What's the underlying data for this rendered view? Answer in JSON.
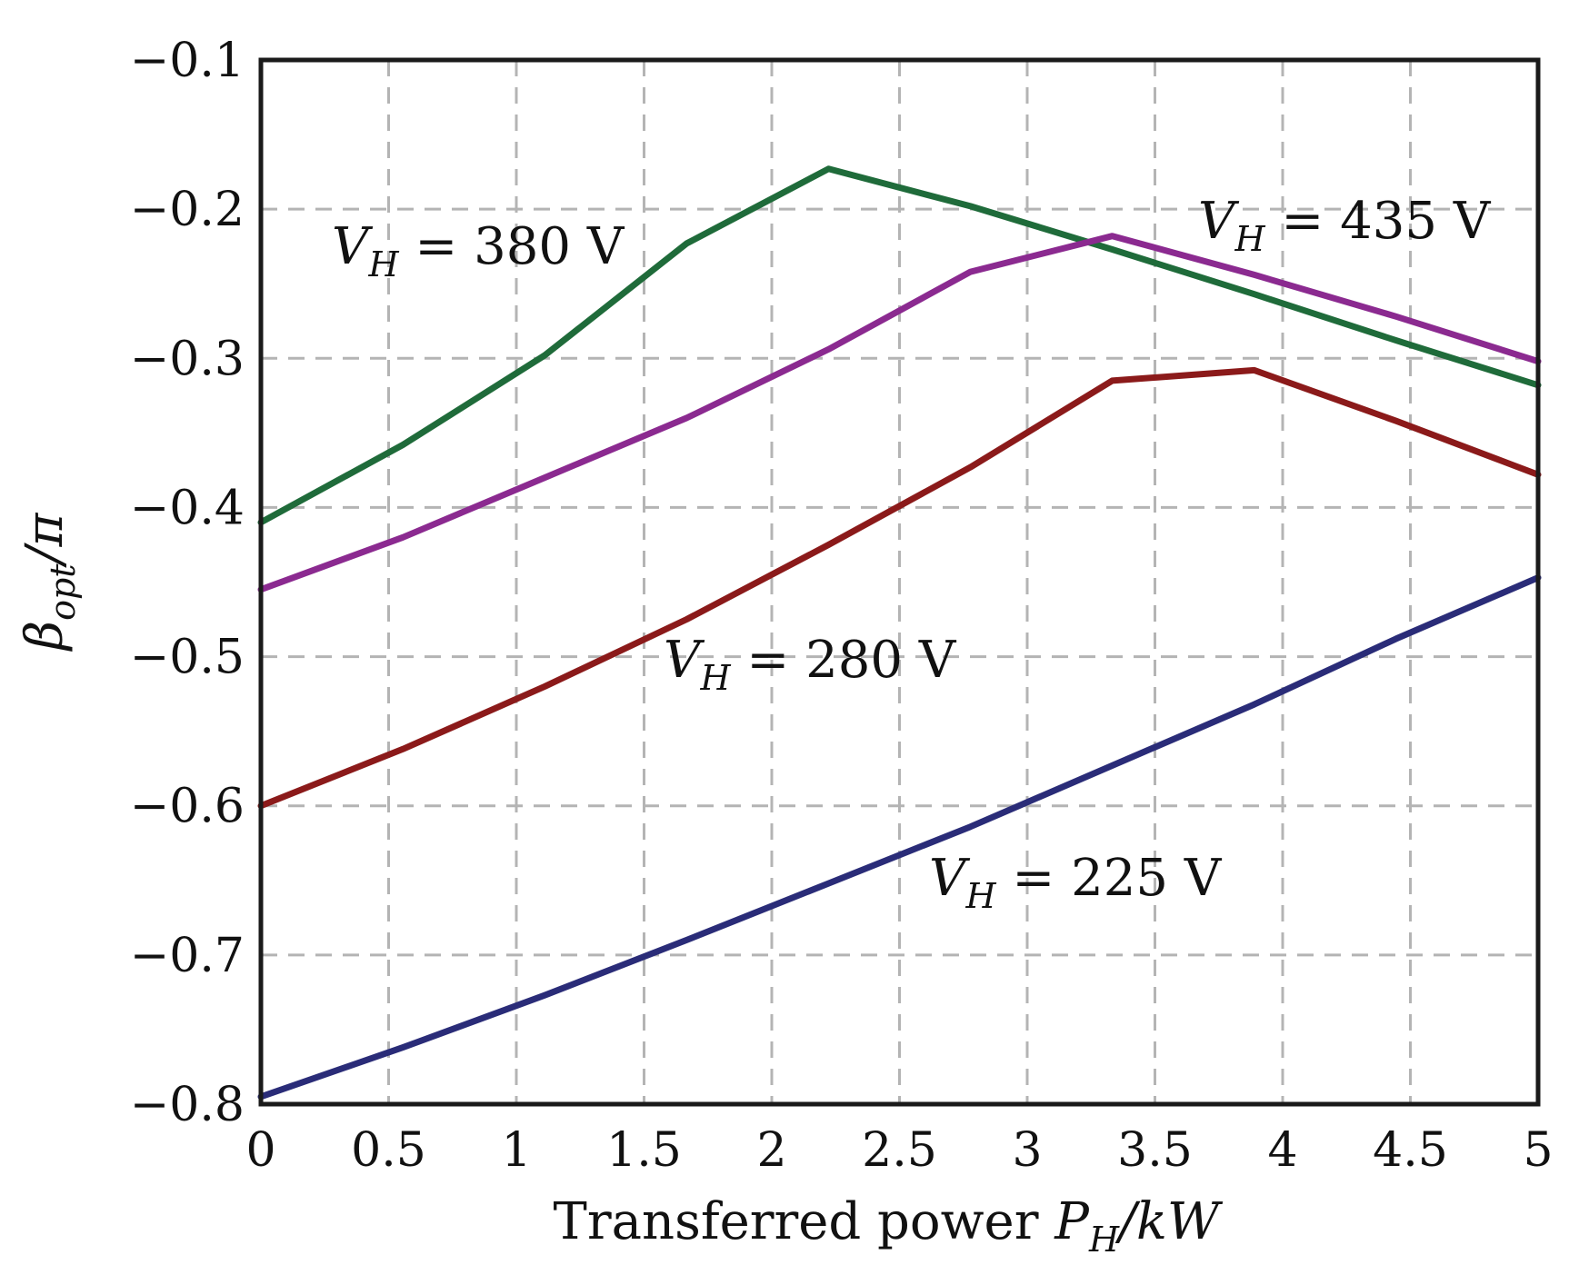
{
  "chart_data": {
    "type": "line",
    "xlabel": {
      "text": "Transferred power ",
      "sym": "P",
      "sub": "H",
      "unit": "/kW"
    },
    "ylabel": {
      "sym": "β",
      "sub": "opt",
      "rest": "/π"
    },
    "xlim": [
      0,
      5
    ],
    "ylim": [
      -0.8,
      -0.1
    ],
    "grid": true,
    "x_ticks": [
      0,
      0.5,
      1,
      1.5,
      2,
      2.5,
      3,
      3.5,
      4,
      4.5,
      5
    ],
    "x_tick_labels": [
      "0",
      "0.5",
      "1",
      "1.5",
      "2",
      "2.5",
      "3",
      "3.5",
      "4",
      "4.5",
      "5"
    ],
    "y_ticks": [
      -0.1,
      -0.2,
      -0.3,
      -0.4,
      -0.5,
      -0.6,
      -0.7,
      -0.8
    ],
    "y_tick_labels": [
      "−0.1",
      "−0.2",
      "−0.3",
      "−0.4",
      "−0.5",
      "−0.6",
      "−0.7",
      "−0.8"
    ],
    "series": [
      {
        "name": "V_H = 380 V",
        "label_voltage": "380",
        "color": "#1f6b3a",
        "x": [
          0,
          0.556,
          1.111,
          1.667,
          2.222,
          2.778,
          3.333,
          3.889,
          4.444,
          5.0
        ],
        "y": [
          -0.41,
          -0.358,
          -0.298,
          -0.223,
          -0.173,
          -0.198,
          -0.227,
          -0.257,
          -0.288,
          -0.318
        ]
      },
      {
        "name": "V_H = 435 V",
        "label_voltage": "435",
        "color": "#8b2a90",
        "x": [
          0,
          0.556,
          1.111,
          1.667,
          2.222,
          2.778,
          3.333,
          3.889,
          4.444,
          5.0
        ],
        "y": [
          -0.455,
          -0.42,
          -0.38,
          -0.34,
          -0.294,
          -0.242,
          -0.218,
          -0.244,
          -0.272,
          -0.302
        ]
      },
      {
        "name": "V_H = 280 V",
        "label_voltage": "280",
        "color": "#8b1a1a",
        "x": [
          0,
          0.556,
          1.111,
          1.667,
          2.222,
          2.778,
          3.333,
          3.889,
          4.444,
          5.0
        ],
        "y": [
          -0.6,
          -0.562,
          -0.52,
          -0.475,
          -0.425,
          -0.373,
          -0.315,
          -0.308,
          -0.342,
          -0.378
        ]
      },
      {
        "name": "V_H = 225 V",
        "label_voltage": "225",
        "color": "#2a2c78",
        "x": [
          0,
          0.556,
          1.111,
          1.667,
          2.222,
          2.778,
          3.333,
          3.889,
          4.444,
          5.0
        ],
        "y": [
          -0.795,
          -0.762,
          -0.727,
          -0.69,
          -0.652,
          -0.614,
          -0.573,
          -0.532,
          -0.488,
          -0.447
        ]
      }
    ],
    "annotations": {
      "prefix_sym": "V",
      "prefix_sub": "H",
      "equals": "=",
      "unit": "V"
    }
  }
}
